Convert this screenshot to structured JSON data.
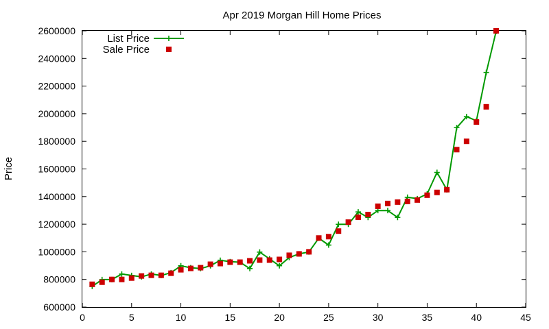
{
  "chart_data": {
    "type": "line",
    "title": "Apr 2019 Morgan Hill Home Prices",
    "xlabel": "",
    "ylabel": "Price",
    "xlim": [
      0,
      45
    ],
    "ylim": [
      600000,
      2600000
    ],
    "xticks": [
      0,
      5,
      10,
      15,
      20,
      25,
      30,
      35,
      40,
      45
    ],
    "yticks": [
      600000,
      800000,
      1000000,
      1200000,
      1400000,
      1600000,
      1800000,
      2000000,
      2200000,
      2400000,
      2600000
    ],
    "grid": false,
    "legend_position": "top-left",
    "series": [
      {
        "name": "List Price",
        "style": "line-with-plus-markers",
        "color": "#009900",
        "x": [
          1,
          2,
          3,
          4,
          5,
          6,
          7,
          8,
          9,
          10,
          11,
          12,
          13,
          14,
          15,
          16,
          17,
          18,
          19,
          20,
          21,
          22,
          23,
          24,
          25,
          26,
          27,
          28,
          29,
          30,
          31,
          32,
          33,
          34,
          35,
          36,
          37,
          38,
          39,
          40,
          41,
          42
        ],
        "y": [
          750000,
          799000,
          799000,
          839000,
          829000,
          819000,
          839000,
          829000,
          849000,
          899000,
          885000,
          879000,
          899000,
          939000,
          929000,
          925000,
          879000,
          998000,
          949000,
          899000,
          959000,
          985000,
          999000,
          1099000,
          1049000,
          1199000,
          1199000,
          1289000,
          1249000,
          1299000,
          1299000,
          1249000,
          1395000,
          1385000,
          1419000,
          1575000,
          1449000,
          1899000,
          1979000,
          1949000,
          2299000,
          2595000
        ]
      },
      {
        "name": "Sale Price",
        "style": "square-markers",
        "color": "#cc0000",
        "x": [
          1,
          2,
          3,
          4,
          5,
          6,
          7,
          8,
          9,
          10,
          11,
          12,
          13,
          14,
          15,
          16,
          17,
          18,
          19,
          20,
          21,
          22,
          23,
          24,
          25,
          26,
          27,
          28,
          29,
          30,
          31,
          32,
          33,
          34,
          35,
          36,
          37,
          38,
          39,
          40,
          41,
          42
        ],
        "y": [
          765000,
          780000,
          800000,
          800000,
          810000,
          825000,
          830000,
          830000,
          845000,
          870000,
          880000,
          885000,
          910000,
          915000,
          925000,
          925000,
          935000,
          940000,
          940000,
          945000,
          975000,
          985000,
          1000000,
          1100000,
          1110000,
          1150000,
          1215000,
          1250000,
          1270000,
          1330000,
          1350000,
          1360000,
          1365000,
          1375000,
          1410000,
          1430000,
          1450000,
          1740000,
          1800000,
          1940000,
          2050000,
          2600000
        ]
      }
    ]
  }
}
